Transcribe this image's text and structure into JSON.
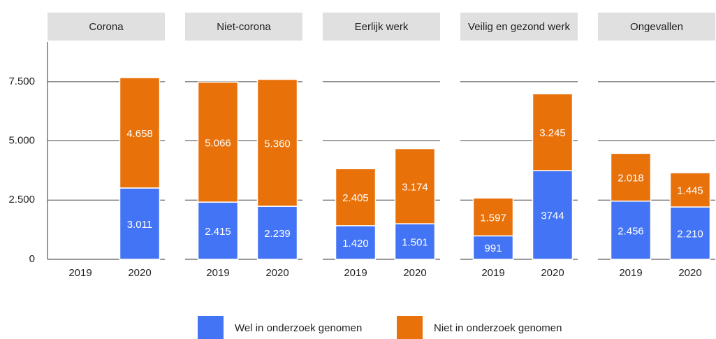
{
  "chart_data": {
    "type": "bar",
    "stacked": true,
    "ylim": [
      0,
      9000
    ],
    "yticks": [
      0,
      {
        "value": 2500,
        "label": "2.500"
      },
      {
        "value": 5000,
        "label": "5.000"
      },
      {
        "value": 7500,
        "label": "7.500"
      }
    ],
    "grid": true,
    "legend": "bottom",
    "series": [
      {
        "name": "Wel in onderzoek genomen",
        "color": "#4374f5"
      },
      {
        "name": "Niet in onderzoek genomen",
        "color": "#e8710a"
      }
    ],
    "facets": [
      {
        "title": "Corona",
        "categories": [
          "2019",
          "2020"
        ],
        "series": [
          {
            "values": [
              null,
              3011
            ],
            "value_labels": [
              null,
              "3.011"
            ]
          },
          {
            "values": [
              null,
              4658
            ],
            "value_labels": [
              null,
              "4.658"
            ]
          }
        ]
      },
      {
        "title": "Niet-corona",
        "categories": [
          "2019",
          "2020"
        ],
        "series": [
          {
            "values": [
              2415,
              2239
            ],
            "value_labels": [
              "2.415",
              "2.239"
            ]
          },
          {
            "values": [
              5066,
              5360
            ],
            "value_labels": [
              "5.066",
              "5.360"
            ]
          }
        ]
      },
      {
        "title": "Eerlijk werk",
        "categories": [
          "2019",
          "2020"
        ],
        "series": [
          {
            "values": [
              1420,
              1501
            ],
            "value_labels": [
              "1.420",
              "1.501"
            ]
          },
          {
            "values": [
              2405,
              3174
            ],
            "value_labels": [
              "2.405",
              "3.174"
            ]
          }
        ]
      },
      {
        "title": "Veilig en gezond werk",
        "categories": [
          "2019",
          "2020"
        ],
        "series": [
          {
            "values": [
              991,
              3744
            ]
          },
          {
            "values": [
              1597,
              3245
            ],
            "value_labels": [
              "1.597",
              "3.245"
            ]
          }
        ]
      },
      {
        "title": "Ongevallen",
        "categories": [
          "2019",
          "2020"
        ],
        "series": [
          {
            "values": [
              2456,
              2210
            ],
            "value_labels": [
              "2.456",
              "2.210"
            ]
          },
          {
            "values": [
              2018,
              1445
            ],
            "value_labels": [
              "2.018",
              "1.445"
            ]
          }
        ]
      }
    ]
  }
}
